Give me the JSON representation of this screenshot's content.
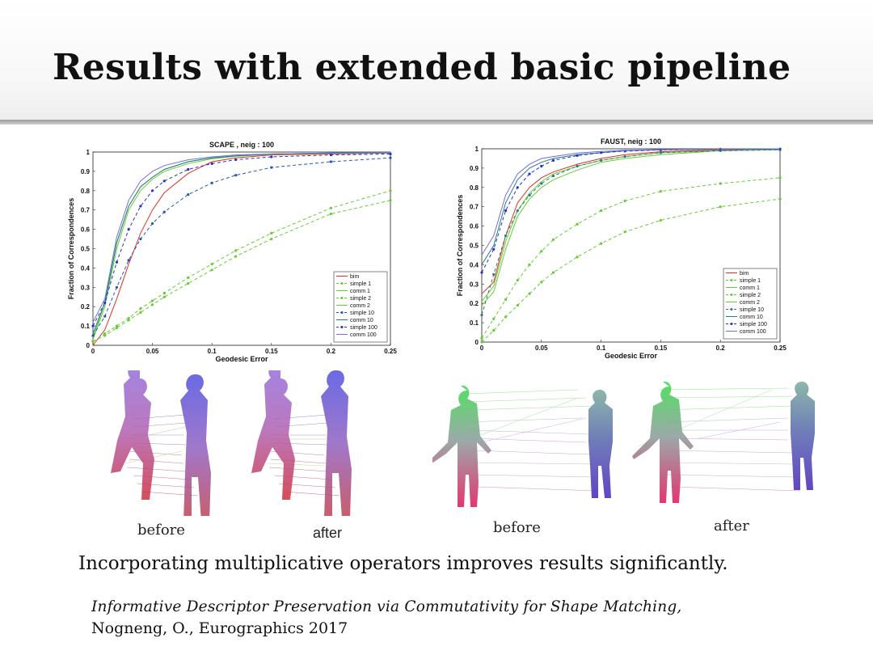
{
  "slide": {
    "title": "Results with extended basic pipeline",
    "main_text": "Incorporating multiplicative operators improves results significantly.",
    "reference_title": "Informative Descriptor Preservation via Commutativity for Shape Matching,",
    "reference_authors": "Nogneng, O., Eurographics 2017"
  },
  "captions": {
    "scape_before": "before",
    "scape_after": "after",
    "faust_before": "before",
    "faust_after": "after"
  },
  "chart_data": [
    {
      "type": "line",
      "title": "SCAPE , neig : 100",
      "xlabel": "Geodesic Error",
      "ylabel": "Fraction of Correspondences",
      "xlim": [
        0,
        0.25
      ],
      "ylim": [
        0,
        1
      ],
      "xticks": [
        "0",
        "0.05",
        "0.1",
        "0.15",
        "0.2",
        "0.25"
      ],
      "yticks": [
        "0",
        "0.1",
        "0.2",
        "0.3",
        "0.4",
        "0.5",
        "0.6",
        "0.7",
        "0.8",
        "0.9",
        "1"
      ],
      "legend_position": "bottom-right",
      "x": [
        0,
        0.01,
        0.02,
        0.03,
        0.04,
        0.05,
        0.06,
        0.08,
        0.1,
        0.12,
        0.15,
        0.2,
        0.25
      ],
      "series": [
        {
          "name": "bim",
          "color": "#e03020",
          "style": "solid",
          "marker": false,
          "values": [
            0,
            0.08,
            0.24,
            0.42,
            0.58,
            0.7,
            0.79,
            0.89,
            0.95,
            0.97,
            0.985,
            0.99,
            0.995
          ]
        },
        {
          "name": "simple 1",
          "color": "#66cc33",
          "style": "dashed",
          "marker": true,
          "values": [
            0.02,
            0.05,
            0.09,
            0.13,
            0.17,
            0.21,
            0.25,
            0.32,
            0.39,
            0.46,
            0.55,
            0.68,
            0.75
          ]
        },
        {
          "name": "comm 1",
          "color": "#66cc33",
          "style": "solid",
          "marker": false,
          "values": [
            0.03,
            0.2,
            0.5,
            0.7,
            0.8,
            0.86,
            0.9,
            0.94,
            0.965,
            0.978,
            0.988,
            0.993,
            0.996
          ]
        },
        {
          "name": "simple 2",
          "color": "#66cc33",
          "style": "dashed",
          "marker": true,
          "values": [
            0.02,
            0.06,
            0.1,
            0.14,
            0.19,
            0.23,
            0.27,
            0.35,
            0.42,
            0.49,
            0.58,
            0.71,
            0.8
          ]
        },
        {
          "name": "comm 2",
          "color": "#66cc33",
          "style": "solid",
          "marker": false,
          "values": [
            0.04,
            0.22,
            0.53,
            0.72,
            0.82,
            0.87,
            0.91,
            0.95,
            0.97,
            0.98,
            0.99,
            0.994,
            0.997
          ]
        },
        {
          "name": "simple 10",
          "color": "#2255bb",
          "style": "dashed",
          "marker": true,
          "values": [
            0.05,
            0.15,
            0.3,
            0.44,
            0.55,
            0.63,
            0.69,
            0.78,
            0.84,
            0.88,
            0.92,
            0.95,
            0.97
          ]
        },
        {
          "name": "comm 10",
          "color": "#2a7a8a",
          "style": "solid",
          "marker": false,
          "values": [
            0.06,
            0.22,
            0.53,
            0.72,
            0.82,
            0.87,
            0.91,
            0.95,
            0.97,
            0.98,
            0.99,
            0.995,
            0.997
          ]
        },
        {
          "name": "simple 100",
          "color": "#2233cc",
          "style": "dashed",
          "marker": true,
          "values": [
            0.1,
            0.22,
            0.43,
            0.6,
            0.72,
            0.8,
            0.85,
            0.91,
            0.94,
            0.96,
            0.975,
            0.985,
            0.99
          ]
        },
        {
          "name": "comm 100",
          "color": "#7070dd",
          "style": "solid",
          "marker": false,
          "values": [
            0.12,
            0.24,
            0.56,
            0.75,
            0.85,
            0.9,
            0.93,
            0.96,
            0.975,
            0.985,
            0.99,
            0.995,
            0.998
          ]
        }
      ]
    },
    {
      "type": "line",
      "title": "FAUST, neig : 100",
      "xlabel": "Geodesic Error",
      "ylabel": "Fraction of Correspondences",
      "xlim": [
        0,
        0.25
      ],
      "ylim": [
        0,
        1
      ],
      "xticks": [
        "0",
        "0.05",
        "0.1",
        "0.15",
        "0.2",
        "0.25"
      ],
      "yticks": [
        "0",
        "0.1",
        "0.2",
        "0.3",
        "0.4",
        "0.5",
        "0.6",
        "0.7",
        "0.8",
        "0.9",
        "1"
      ],
      "legend_position": "bottom-right",
      "x": [
        0,
        0.01,
        0.02,
        0.03,
        0.04,
        0.05,
        0.06,
        0.08,
        0.1,
        0.12,
        0.15,
        0.2,
        0.25
      ],
      "series": [
        {
          "name": "bim",
          "color": "#e03020",
          "style": "solid",
          "marker": false,
          "values": [
            0.25,
            0.31,
            0.55,
            0.72,
            0.8,
            0.85,
            0.88,
            0.92,
            0.95,
            0.97,
            0.985,
            0.995,
            0.998
          ]
        },
        {
          "name": "simple 1",
          "color": "#66cc33",
          "style": "dashed",
          "marker": true,
          "values": [
            0.0,
            0.06,
            0.13,
            0.19,
            0.25,
            0.31,
            0.36,
            0.44,
            0.51,
            0.57,
            0.63,
            0.7,
            0.74
          ]
        },
        {
          "name": "comm 1",
          "color": "#66cc33",
          "style": "solid",
          "marker": false,
          "values": [
            0.19,
            0.26,
            0.48,
            0.65,
            0.74,
            0.8,
            0.84,
            0.89,
            0.93,
            0.95,
            0.97,
            0.99,
            0.995
          ]
        },
        {
          "name": "simple 2",
          "color": "#66cc33",
          "style": "dashed",
          "marker": true,
          "values": [
            0.02,
            0.12,
            0.22,
            0.32,
            0.4,
            0.47,
            0.53,
            0.61,
            0.68,
            0.73,
            0.78,
            0.82,
            0.85
          ]
        },
        {
          "name": "comm 2",
          "color": "#66cc33",
          "style": "solid",
          "marker": false,
          "values": [
            0.21,
            0.29,
            0.52,
            0.68,
            0.77,
            0.83,
            0.87,
            0.91,
            0.94,
            0.96,
            0.98,
            0.99,
            0.996
          ]
        },
        {
          "name": "simple 10",
          "color": "#2a7a8a",
          "style": "dashed",
          "marker": true,
          "values": [
            0.14,
            0.35,
            0.55,
            0.68,
            0.76,
            0.82,
            0.86,
            0.91,
            0.94,
            0.96,
            0.98,
            0.99,
            0.995
          ]
        },
        {
          "name": "comm 10",
          "color": "#2a7a8a",
          "style": "solid",
          "marker": false,
          "values": [
            0.4,
            0.5,
            0.72,
            0.84,
            0.9,
            0.93,
            0.95,
            0.97,
            0.98,
            0.99,
            0.995,
            0.998,
            0.999
          ]
        },
        {
          "name": "simple 100",
          "color": "#2233cc",
          "style": "dashed",
          "marker": true,
          "values": [
            0.36,
            0.48,
            0.68,
            0.8,
            0.87,
            0.91,
            0.94,
            0.965,
            0.98,
            0.988,
            0.994,
            0.998,
            0.999
          ]
        },
        {
          "name": "comm 100",
          "color": "#7070dd",
          "style": "solid",
          "marker": false,
          "values": [
            0.45,
            0.55,
            0.76,
            0.87,
            0.92,
            0.95,
            0.96,
            0.978,
            0.986,
            0.992,
            0.996,
            0.999,
            1.0
          ]
        }
      ]
    }
  ]
}
